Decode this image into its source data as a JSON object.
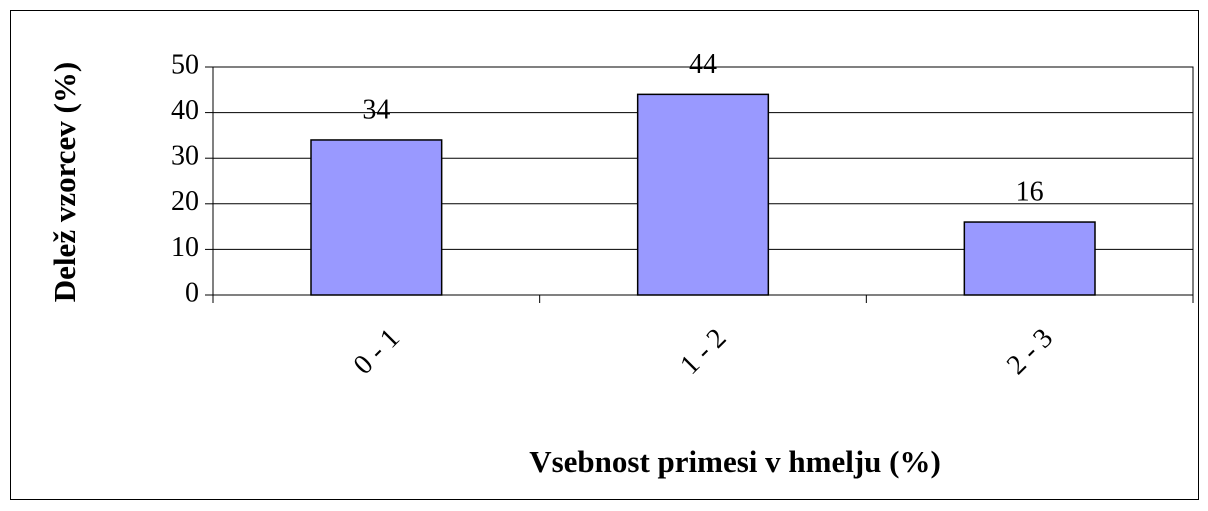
{
  "chart_data": {
    "type": "bar",
    "categories": [
      "0 - 1",
      "1 - 2",
      "2 - 3"
    ],
    "values": [
      34,
      44,
      16
    ],
    "color": "#9999ff",
    "ylim": [
      0,
      50
    ],
    "yticks": [
      0,
      10,
      20,
      30,
      40,
      50
    ],
    "grid": true,
    "x_label": "Vsebnost primesi v hmelju (%)",
    "y_label": "Delež vzorcev (%)"
  }
}
